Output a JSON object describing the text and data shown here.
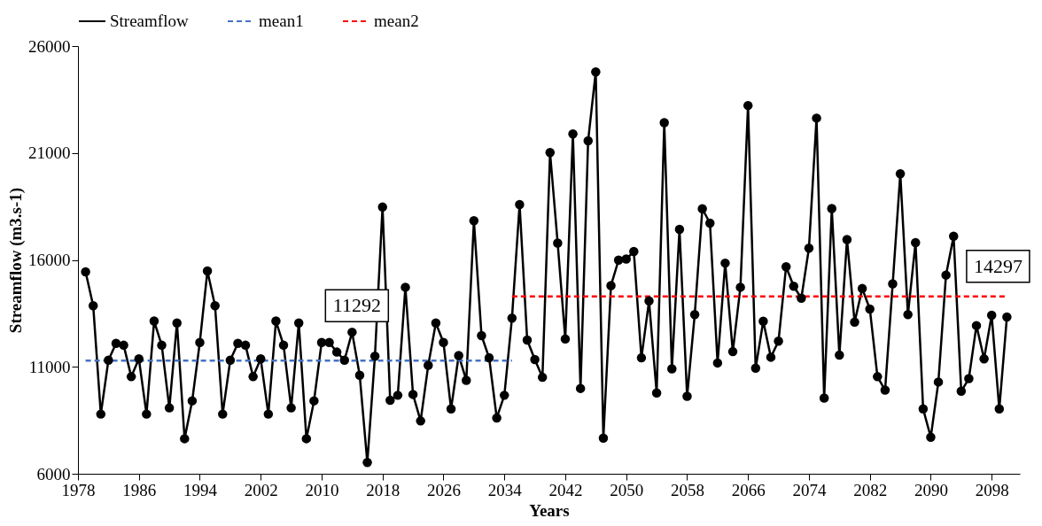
{
  "chart_data": {
    "type": "line",
    "xlabel": "Years",
    "ylabel": "Streamflow (m3.s-1)",
    "x": [
      1979,
      1980,
      1981,
      1982,
      1983,
      1984,
      1985,
      1986,
      1987,
      1988,
      1989,
      1990,
      1991,
      1992,
      1993,
      1994,
      1995,
      1996,
      1997,
      1998,
      1999,
      2000,
      2001,
      2002,
      2003,
      2004,
      2005,
      2006,
      2007,
      2008,
      2009,
      2010,
      2011,
      2012,
      2013,
      2014,
      2015,
      2016,
      2017,
      2018,
      2019,
      2020,
      2021,
      2022,
      2023,
      2024,
      2025,
      2026,
      2027,
      2028,
      2029,
      2030,
      2031,
      2032,
      2033,
      2034,
      2035,
      2036,
      2037,
      2038,
      2039,
      2040,
      2041,
      2042,
      2043,
      2044,
      2045,
      2046,
      2047,
      2048,
      2049,
      2050,
      2051,
      2052,
      2053,
      2054,
      2055,
      2056,
      2057,
      2058,
      2059,
      2060,
      2061,
      2062,
      2063,
      2064,
      2065,
      2066,
      2067,
      2068,
      2069,
      2070,
      2071,
      2072,
      2073,
      2074,
      2075,
      2076,
      2077,
      2078,
      2079,
      2080,
      2081,
      2082,
      2083,
      2084,
      2085,
      2086,
      2087,
      2088,
      2089,
      2090,
      2091,
      2092,
      2093,
      2094,
      2095,
      2096,
      2097,
      2098,
      2099,
      2100
    ],
    "series": [
      {
        "name": "Streamflow",
        "color": "#000000",
        "marker": "circle",
        "line_style": "solid",
        "values": [
          15440,
          13860,
          8790,
          11310,
          12100,
          12010,
          10540,
          11370,
          8790,
          13140,
          12010,
          9080,
          13050,
          7640,
          9410,
          12140,
          15480,
          13860,
          8790,
          11310,
          12100,
          12010,
          10540,
          11370,
          8790,
          13140,
          12010,
          9080,
          13050,
          7640,
          9410,
          12140,
          12140,
          11690,
          11310,
          12620,
          10610,
          6530,
          11500,
          18470,
          9440,
          9670,
          14720,
          9710,
          8470,
          11070,
          13050,
          12140,
          9030,
          11530,
          10370,
          17830,
          12460,
          11420,
          8610,
          9670,
          13280,
          18590,
          12250,
          11340,
          10510,
          21020,
          16790,
          12300,
          21890,
          9990,
          21570,
          24790,
          7670,
          14800,
          15990,
          16040,
          16390,
          11420,
          14080,
          9780,
          22420,
          10910,
          17430,
          9620,
          13440,
          18390,
          17720,
          11180,
          15850,
          11710,
          14720,
          23220,
          10940,
          13130,
          11450,
          12200,
          15680,
          14770,
          14210,
          16550,
          22630,
          9540,
          18400,
          11550,
          16950,
          13090,
          14660,
          13700,
          10540,
          9910,
          14880,
          20030,
          13440,
          16810,
          9030,
          7710,
          10290,
          15290,
          17110,
          9860,
          10450,
          12930,
          11370,
          13410,
          9030,
          13330
        ]
      },
      {
        "name": "mean1",
        "color": "#4472c4",
        "marker": "none",
        "line_style": "dashed",
        "x": [
          1979,
          2035
        ],
        "values": [
          11292,
          11292
        ]
      },
      {
        "name": "mean2",
        "color": "#ff0000",
        "marker": "none",
        "line_style": "dashed",
        "x": [
          2035,
          2100
        ],
        "values": [
          14297,
          14297
        ]
      }
    ],
    "xlim": [
      1978,
      2101.7
    ],
    "xticks": [
      1978,
      1986,
      1994,
      2002,
      2010,
      2018,
      2026,
      2034,
      2042,
      2050,
      2058,
      2066,
      2074,
      2082,
      2090,
      2098
    ],
    "ylim": [
      6000,
      26000
    ],
    "yticks": [
      6000,
      11000,
      16000,
      21000,
      26000
    ],
    "annotations": [
      "11292",
      "14297"
    ],
    "grid": false,
    "legend": "top"
  }
}
